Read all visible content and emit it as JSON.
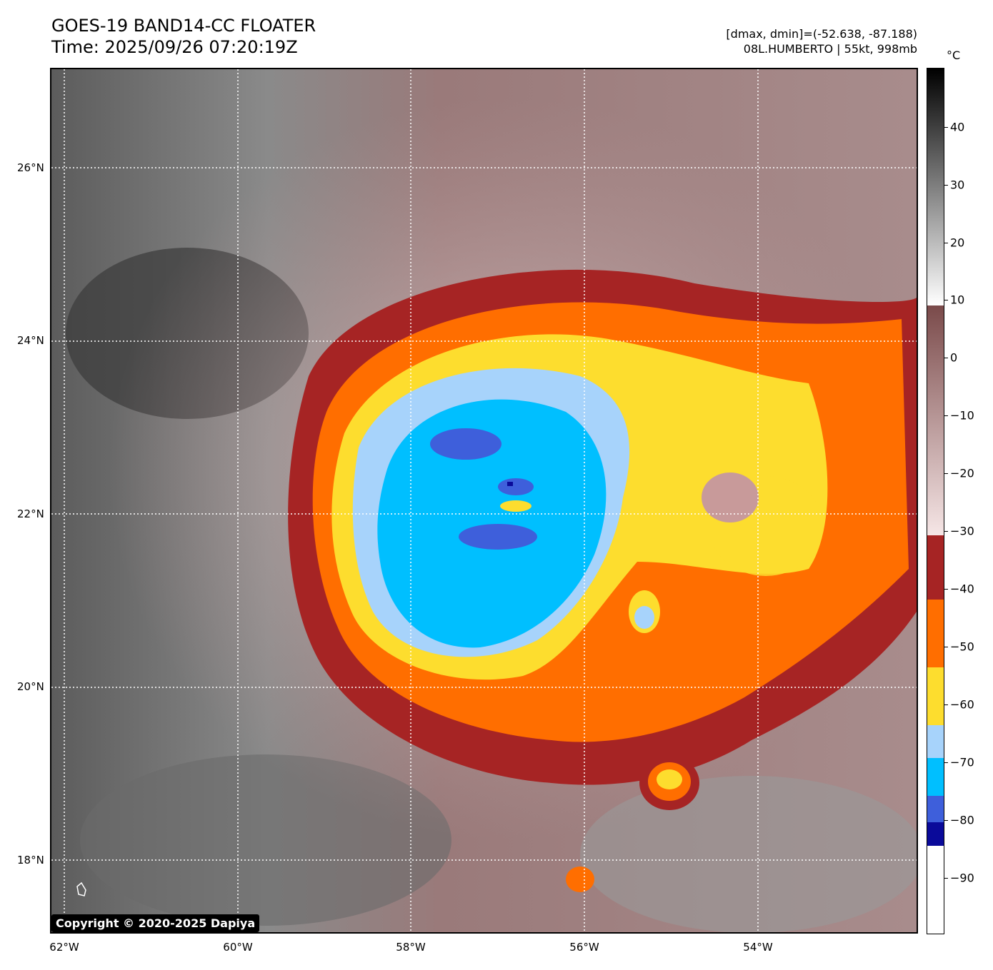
{
  "header": {
    "title_line1": "GOES-19 BAND14-CC FLOATER",
    "title_line2": "Time: 2025/09/26 07:20:19Z",
    "range_text": "[dmax, dmin]=(-52.638, -87.188)",
    "storm_text": "08L.HUMBERTO | 55kt, 998mb"
  },
  "map": {
    "lat_labels": [
      "26°N",
      "24°N",
      "22°N",
      "20°N",
      "18°N"
    ],
    "lon_labels": [
      "62°W",
      "60°W",
      "58°W",
      "56°W",
      "54°W"
    ]
  },
  "colorbar": {
    "unit": "°C",
    "ticks": [
      "40",
      "30",
      "20",
      "10",
      "0",
      "−10",
      "−20",
      "−30",
      "−40",
      "−50",
      "−60",
      "−70",
      "−80",
      "−90"
    ],
    "colors": {
      "warm_gray_top": "#000000",
      "warm_gray_bottom": "#ffffff",
      "brown_top": "#7a4a4a",
      "brown_bottom": "#f6e6e6",
      "dark_red": "#a62424",
      "orange": "#ff6e00",
      "yellow": "#fddd2e",
      "light_blue": "#a7d3fb",
      "cyan": "#00bfff",
      "royal_blue": "#3e5fdb",
      "navy": "#0a0a9a",
      "white": "#ffffff"
    }
  },
  "footer": {
    "copyright": "Copyright © 2020-2025 Dapiya"
  }
}
